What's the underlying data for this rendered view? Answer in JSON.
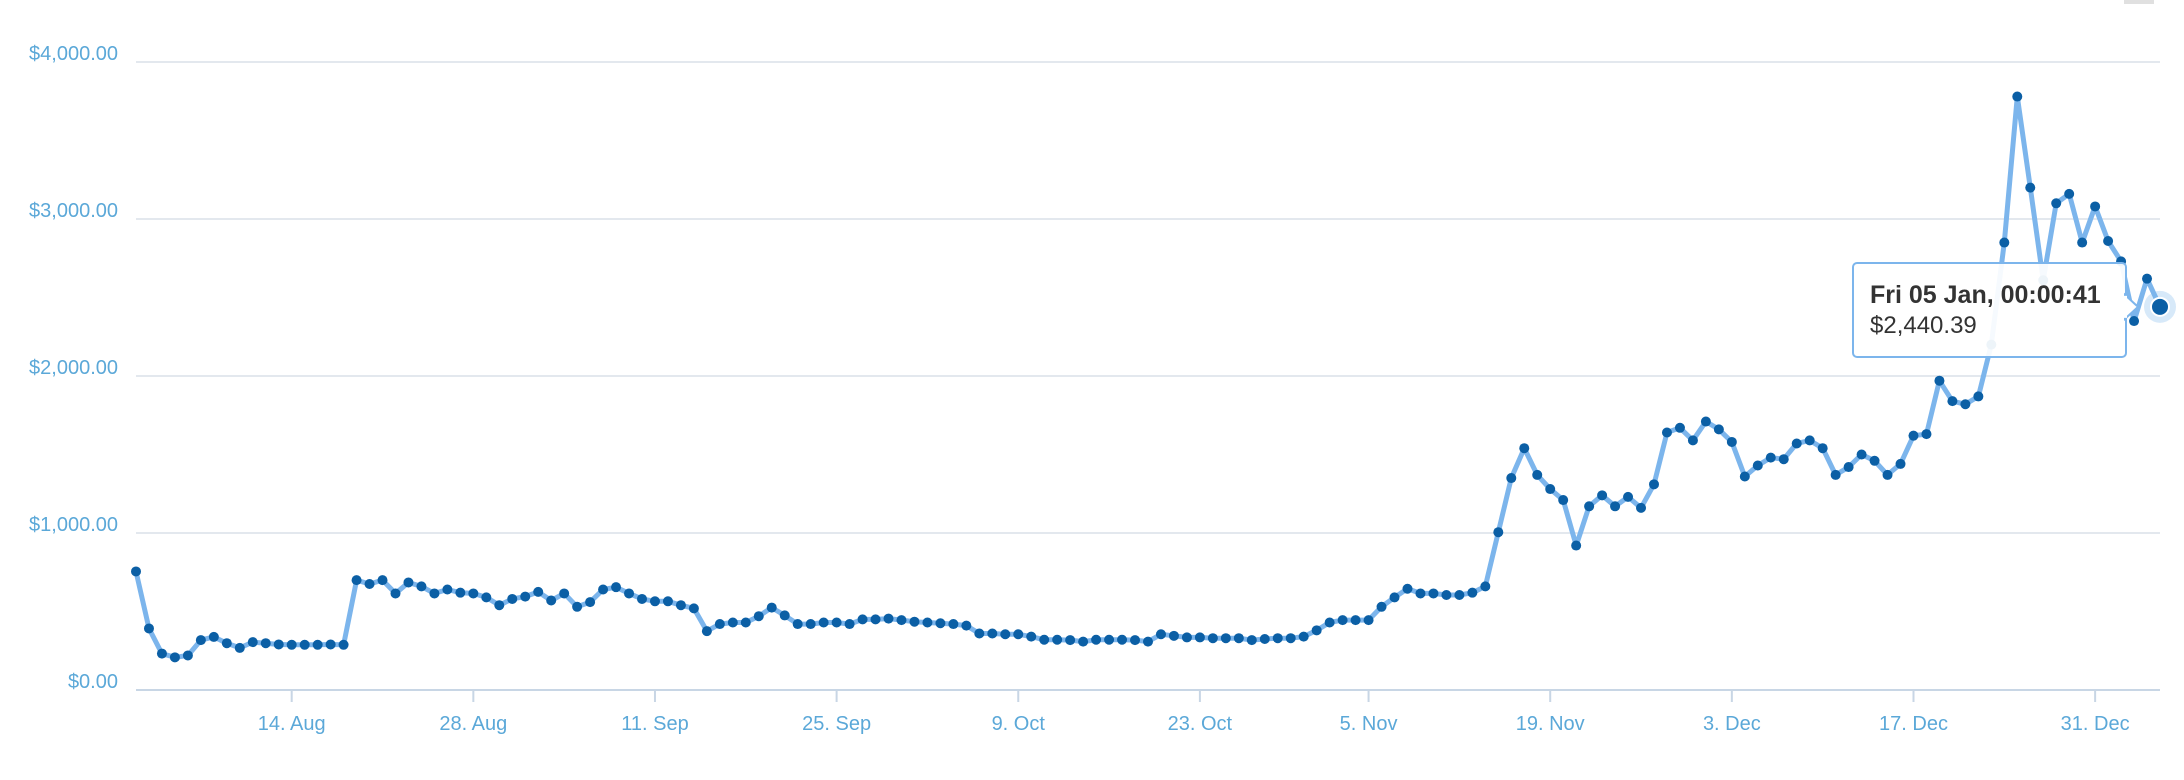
{
  "chart_data": {
    "type": "line",
    "title": "",
    "xlabel": "",
    "ylabel": "",
    "ylim": [
      0,
      4000
    ],
    "y_ticks": [
      "$0.00",
      "$1,000.00",
      "$2,000.00",
      "$3,000.00",
      "$4,000.00"
    ],
    "x_tick_labels": [
      "14. Aug",
      "28. Aug",
      "11. Sep",
      "25. Sep",
      "9. Oct",
      "23. Oct",
      "5. Nov",
      "19. Nov",
      "3. Dec",
      "17. Dec",
      "31. Dec"
    ],
    "x_tick_dates": [
      "2017-08-14",
      "2017-08-28",
      "2017-09-11",
      "2017-09-25",
      "2017-10-09",
      "2017-10-23",
      "2017-11-05",
      "2017-11-19",
      "2017-12-03",
      "2017-12-17",
      "2017-12-31"
    ],
    "xlim": [
      "2017-08-02",
      "2018-01-05"
    ],
    "grid": true,
    "legend": "none",
    "line_color": "#7cb5ec",
    "marker_color": "#0b5fa5",
    "series": [
      {
        "values": [
          [
            "2017-08-02",
            755
          ],
          [
            "2017-08-03",
            392
          ],
          [
            "2017-08-04",
            232
          ],
          [
            "2017-08-05",
            208
          ],
          [
            "2017-08-06",
            220
          ],
          [
            "2017-08-07",
            318
          ],
          [
            "2017-08-08",
            338
          ],
          [
            "2017-08-09",
            298
          ],
          [
            "2017-08-10",
            268
          ],
          [
            "2017-08-11",
            305
          ],
          [
            "2017-08-12",
            298
          ],
          [
            "2017-08-13",
            290
          ],
          [
            "2017-08-14",
            288
          ],
          [
            "2017-08-15",
            288
          ],
          [
            "2017-08-16",
            288
          ],
          [
            "2017-08-17",
            290
          ],
          [
            "2017-08-18",
            288
          ],
          [
            "2017-08-19",
            700
          ],
          [
            "2017-08-20",
            675
          ],
          [
            "2017-08-21",
            700
          ],
          [
            "2017-08-22",
            615
          ],
          [
            "2017-08-23",
            685
          ],
          [
            "2017-08-24",
            660
          ],
          [
            "2017-08-25",
            615
          ],
          [
            "2017-08-26",
            640
          ],
          [
            "2017-08-27",
            620
          ],
          [
            "2017-08-28",
            615
          ],
          [
            "2017-08-29",
            590
          ],
          [
            "2017-08-30",
            540
          ],
          [
            "2017-08-31",
            580
          ],
          [
            "2017-09-01",
            595
          ],
          [
            "2017-09-02",
            625
          ],
          [
            "2017-09-03",
            570
          ],
          [
            "2017-09-04",
            615
          ],
          [
            "2017-09-05",
            530
          ],
          [
            "2017-09-06",
            560
          ],
          [
            "2017-09-07",
            640
          ],
          [
            "2017-09-08",
            655
          ],
          [
            "2017-09-09",
            615
          ],
          [
            "2017-09-10",
            580
          ],
          [
            "2017-09-11",
            565
          ],
          [
            "2017-09-12",
            565
          ],
          [
            "2017-09-13",
            540
          ],
          [
            "2017-09-14",
            520
          ],
          [
            "2017-09-15",
            375
          ],
          [
            "2017-09-16",
            420
          ],
          [
            "2017-09-17",
            430
          ],
          [
            "2017-09-18",
            430
          ],
          [
            "2017-09-19",
            470
          ],
          [
            "2017-09-20",
            525
          ],
          [
            "2017-09-21",
            475
          ],
          [
            "2017-09-22",
            420
          ],
          [
            "2017-09-23",
            420
          ],
          [
            "2017-09-24",
            430
          ],
          [
            "2017-09-25",
            430
          ],
          [
            "2017-09-26",
            420
          ],
          [
            "2017-09-27",
            450
          ],
          [
            "2017-09-28",
            450
          ],
          [
            "2017-09-29",
            455
          ],
          [
            "2017-09-30",
            445
          ],
          [
            "2017-10-01",
            435
          ],
          [
            "2017-10-02",
            430
          ],
          [
            "2017-10-03",
            425
          ],
          [
            "2017-10-04",
            420
          ],
          [
            "2017-10-05",
            410
          ],
          [
            "2017-10-06",
            360
          ],
          [
            "2017-10-07",
            360
          ],
          [
            "2017-10-08",
            355
          ],
          [
            "2017-10-09",
            355
          ],
          [
            "2017-10-10",
            340
          ],
          [
            "2017-10-11",
            320
          ],
          [
            "2017-10-12",
            320
          ],
          [
            "2017-10-13",
            318
          ],
          [
            "2017-10-14",
            308
          ],
          [
            "2017-10-15",
            320
          ],
          [
            "2017-10-16",
            320
          ],
          [
            "2017-10-17",
            320
          ],
          [
            "2017-10-18",
            318
          ],
          [
            "2017-10-19",
            308
          ],
          [
            "2017-10-20",
            355
          ],
          [
            "2017-10-21",
            345
          ],
          [
            "2017-10-22",
            335
          ],
          [
            "2017-10-23",
            335
          ],
          [
            "2017-10-24",
            330
          ],
          [
            "2017-10-25",
            330
          ],
          [
            "2017-10-26",
            330
          ],
          [
            "2017-10-27",
            318
          ],
          [
            "2017-10-28",
            325
          ],
          [
            "2017-10-29",
            330
          ],
          [
            "2017-10-30",
            330
          ],
          [
            "2017-10-31",
            340
          ],
          [
            "2017-11-01",
            380
          ],
          [
            "2017-11-02",
            430
          ],
          [
            "2017-11-03",
            445
          ],
          [
            "2017-11-04",
            445
          ],
          [
            "2017-11-05",
            445
          ],
          [
            "2017-11-06",
            530
          ],
          [
            "2017-11-07",
            590
          ],
          [
            "2017-11-08",
            645
          ],
          [
            "2017-11-09",
            615
          ],
          [
            "2017-11-10",
            615
          ],
          [
            "2017-11-11",
            605
          ],
          [
            "2017-11-12",
            605
          ],
          [
            "2017-11-13",
            620
          ],
          [
            "2017-11-14",
            660
          ],
          [
            "2017-11-15",
            1005
          ],
          [
            "2017-11-16",
            1350
          ],
          [
            "2017-11-17",
            1540
          ],
          [
            "2017-11-18",
            1370
          ],
          [
            "2017-11-19",
            1280
          ],
          [
            "2017-11-20",
            1210
          ],
          [
            "2017-11-21",
            920
          ],
          [
            "2017-11-22",
            1170
          ],
          [
            "2017-11-23",
            1240
          ],
          [
            "2017-11-24",
            1170
          ],
          [
            "2017-11-25",
            1230
          ],
          [
            "2017-11-26",
            1160
          ],
          [
            "2017-11-27",
            1310
          ],
          [
            "2017-11-28",
            1640
          ],
          [
            "2017-11-29",
            1670
          ],
          [
            "2017-11-30",
            1590
          ],
          [
            "2017-12-01",
            1710
          ],
          [
            "2017-12-02",
            1660
          ],
          [
            "2017-12-03",
            1580
          ],
          [
            "2017-12-04",
            1360
          ],
          [
            "2017-12-05",
            1430
          ],
          [
            "2017-12-06",
            1480
          ],
          [
            "2017-12-07",
            1470
          ],
          [
            "2017-12-08",
            1570
          ],
          [
            "2017-12-09",
            1590
          ],
          [
            "2017-12-10",
            1540
          ],
          [
            "2017-12-11",
            1370
          ],
          [
            "2017-12-12",
            1420
          ],
          [
            "2017-12-13",
            1500
          ],
          [
            "2017-12-14",
            1460
          ],
          [
            "2017-12-15",
            1370
          ],
          [
            "2017-12-16",
            1440
          ],
          [
            "2017-12-17",
            1620
          ],
          [
            "2017-12-18",
            1630
          ],
          [
            "2017-12-19",
            1970
          ],
          [
            "2017-12-20",
            1840
          ],
          [
            "2017-12-21",
            1820
          ],
          [
            "2017-12-22",
            1870
          ],
          [
            "2017-12-23",
            2200
          ],
          [
            "2017-12-24",
            2850
          ],
          [
            "2017-12-25",
            3780
          ],
          [
            "2017-12-26",
            3200
          ],
          [
            "2017-12-27",
            2610
          ],
          [
            "2017-12-28",
            3100
          ],
          [
            "2017-12-29",
            3160
          ],
          [
            "2017-12-30",
            2850
          ],
          [
            "2017-12-31",
            3080
          ],
          [
            "2018-01-01",
            2860
          ],
          [
            "2018-01-02",
            2730
          ],
          [
            "2018-01-03",
            2350
          ],
          [
            "2018-01-04",
            2620
          ],
          [
            "2018-01-05",
            2440.39
          ]
        ]
      }
    ],
    "tooltip": {
      "title": "Fri 05 Jan, 00:00:41",
      "value": "$2,440.39"
    }
  }
}
